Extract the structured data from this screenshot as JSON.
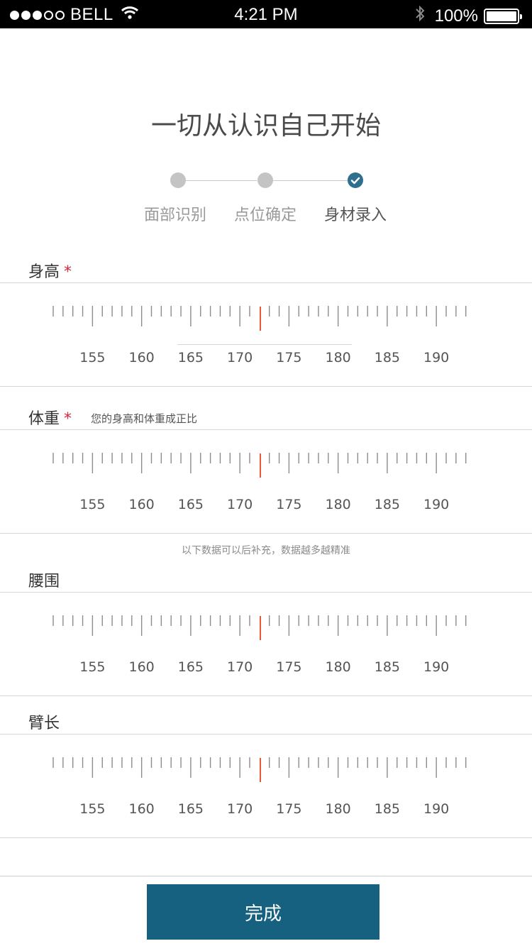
{
  "status_bar": {
    "carrier": "BELL",
    "signal_bars_filled": 3,
    "signal_bars_total": 5,
    "time": "4:21 PM",
    "battery": "100%"
  },
  "title": "一切从认识自己开始",
  "steps": [
    {
      "label": "面部识别",
      "state": "done"
    },
    {
      "label": "点位确定",
      "state": "done"
    },
    {
      "label": "身材录入",
      "state": "active"
    }
  ],
  "measurements": {
    "height": {
      "label": "身高",
      "required_mark": "*",
      "ticks": [
        "155",
        "160",
        "165",
        "170",
        "175",
        "180",
        "185",
        "190"
      ]
    },
    "weight": {
      "label": "体重",
      "required_mark": "*",
      "hint": "您的身高和体重成正比",
      "ticks": [
        "155",
        "160",
        "165",
        "170",
        "175",
        "180",
        "185",
        "190"
      ]
    },
    "optional_note": "以下数据可以后补充，数据越多越精准",
    "waist": {
      "label": "腰围",
      "ticks": [
        "155",
        "160",
        "165",
        "170",
        "175",
        "180",
        "185",
        "190"
      ]
    },
    "arm": {
      "label": "臂长",
      "ticks": [
        "155",
        "160",
        "165",
        "170",
        "175",
        "180",
        "185",
        "190"
      ]
    }
  },
  "done_button": "完成",
  "colors": {
    "accent": "#15617f",
    "indicator": "#e8593a",
    "required": "#d9263d",
    "step_inactive": "#c4c4c4"
  }
}
